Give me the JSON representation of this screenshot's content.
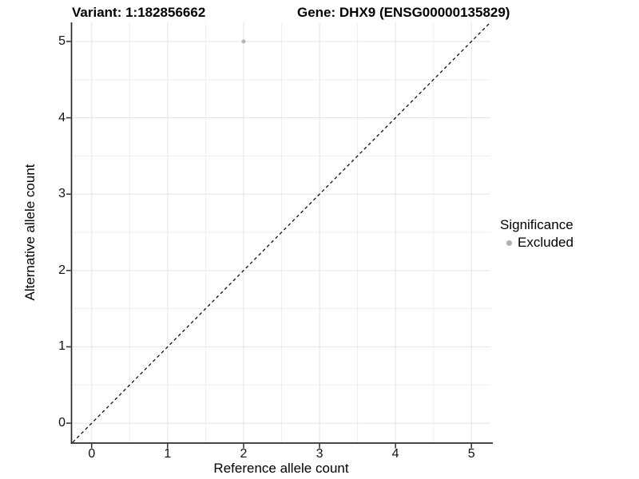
{
  "chart_data": {
    "type": "scatter",
    "titles": {
      "variant": "Variant: 1:182856662",
      "gene": "Gene: DHX9 (ENSG00000135829)"
    },
    "xlabel": "Reference allele count",
    "ylabel": "Alternative allele count",
    "xlim": [
      -0.25,
      5.25
    ],
    "ylim": [
      -0.25,
      5.25
    ],
    "x_ticks": [
      0,
      1,
      2,
      3,
      4,
      5
    ],
    "y_ticks": [
      0,
      1,
      2,
      3,
      4,
      5
    ],
    "minor_gridlines": [
      0.5,
      1.5,
      2.5,
      3.5,
      4.5
    ],
    "grid": true,
    "reference_line": {
      "type": "identity",
      "style": "dashed",
      "color": "#000000"
    },
    "series": [
      {
        "name": "Excluded",
        "color": "#b3b3b3",
        "points": [
          {
            "x": 2,
            "y": 5
          }
        ]
      }
    ],
    "legend": {
      "title": "Significance",
      "position": "right",
      "items": [
        {
          "label": "Excluded",
          "color": "#b0b0b0"
        }
      ]
    },
    "colors": {
      "grid_major": "#e4e4e4",
      "grid_minor": "#efefef",
      "axis": "#2b2b2b",
      "background": "#ffffff"
    }
  }
}
